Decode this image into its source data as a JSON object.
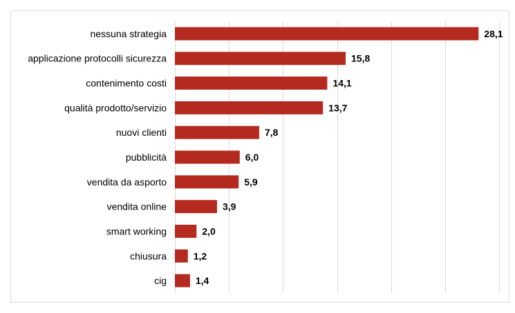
{
  "chart_data": {
    "type": "bar",
    "orientation": "horizontal",
    "categories": [
      "nessuna strategia",
      "applicazione protocolli sicurezza",
      "contenimento costi",
      "qualità prodotto/servizio",
      "nuovi clienti",
      "pubblicità",
      "vendita da asporto",
      "vendita online",
      "smart working",
      "chiusura",
      "cig"
    ],
    "values": [
      28.1,
      15.8,
      14.1,
      13.7,
      7.8,
      6.0,
      5.9,
      3.9,
      2.0,
      1.2,
      1.4
    ],
    "value_labels": [
      "28,1",
      "15,8",
      "14,1",
      "13,7",
      "7,8",
      "6,0",
      "5,9",
      "3,9",
      "2,0",
      "1,2",
      "1,4"
    ],
    "title": "",
    "xlabel": "",
    "ylabel": "",
    "xlim": [
      0,
      30
    ],
    "grid": true,
    "legend": "none",
    "bar_color": "#b52a1f"
  }
}
